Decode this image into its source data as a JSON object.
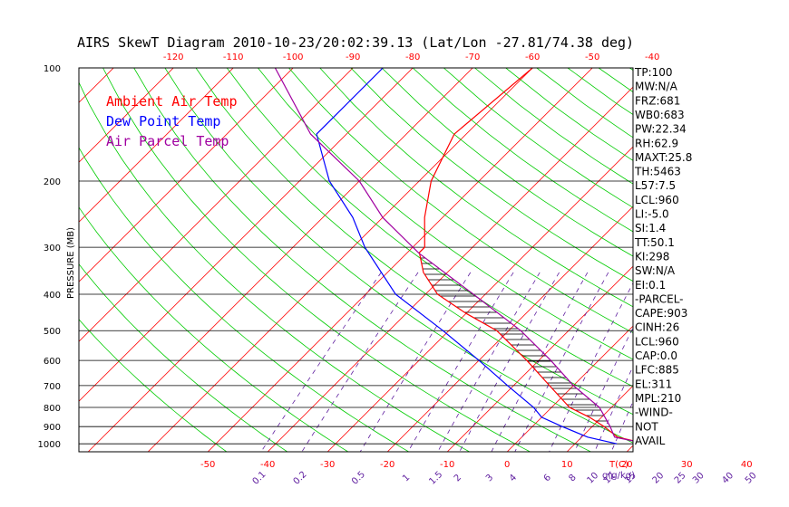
{
  "chart_data": {
    "type": "line",
    "title": "AIRS SkewT Diagram 2010-10-23/20:02:39.13 (Lat/Lon -27.81/74.38 deg)",
    "ylabel": "PRESSURE (MB)",
    "y_scale": "log",
    "ylim": [
      1050,
      100
    ],
    "pressure_ticks": [
      100,
      200,
      300,
      400,
      500,
      600,
      700,
      800,
      900,
      1000
    ],
    "top_temp_ticks": [
      -120,
      -110,
      -100,
      -90,
      -80,
      -70,
      -60,
      -50,
      -40
    ],
    "bottom_temp_ticks": [
      -50,
      -40,
      -30,
      -20,
      -10,
      0,
      10,
      20,
      30,
      40
    ],
    "bottom_temp_unit": "T(C)",
    "mixing_ratio_ticks": [
      "0.1",
      "0.2",
      "0.5",
      "1",
      "1.5",
      "2",
      "3",
      "4",
      "6",
      "8",
      "10",
      "12",
      "15",
      "20",
      "25",
      "30",
      "40",
      "50"
    ],
    "mixing_ratio_unit": "g(g/kg)",
    "legend": [
      {
        "label": "Ambient Air Temp",
        "color": "#ff0000"
      },
      {
        "label": "Dew Point Temp",
        "color": "#0000ff"
      },
      {
        "label": "Air Parcel Temp",
        "color": "#a000a0"
      }
    ],
    "series": [
      {
        "name": "Ambient Air Temp",
        "color": "#ff0000",
        "points": [
          [
            1000,
            22
          ],
          [
            960,
            16
          ],
          [
            900,
            12
          ],
          [
            850,
            8
          ],
          [
            800,
            3
          ],
          [
            700,
            -4
          ],
          [
            600,
            -12
          ],
          [
            500,
            -22
          ],
          [
            450,
            -30
          ],
          [
            400,
            -38
          ],
          [
            350,
            -44
          ],
          [
            310,
            -48
          ],
          [
            300,
            -48
          ],
          [
            250,
            -53
          ],
          [
            200,
            -58
          ],
          [
            150,
            -62
          ],
          [
            100,
            -60
          ]
        ]
      },
      {
        "name": "Dew Point Temp",
        "color": "#0000ff",
        "points": [
          [
            1000,
            17
          ],
          [
            960,
            11
          ],
          [
            900,
            5
          ],
          [
            850,
            0
          ],
          [
            800,
            -3
          ],
          [
            700,
            -11
          ],
          [
            600,
            -20
          ],
          [
            500,
            -31
          ],
          [
            400,
            -45
          ],
          [
            300,
            -58
          ],
          [
            250,
            -65
          ],
          [
            200,
            -75
          ],
          [
            150,
            -85
          ],
          [
            100,
            -85
          ]
        ]
      },
      {
        "name": "Air Parcel Temp",
        "color": "#a000a0",
        "points": [
          [
            1000,
            22
          ],
          [
            960,
            15.5
          ],
          [
            900,
            13
          ],
          [
            800,
            8
          ],
          [
            700,
            0
          ],
          [
            600,
            -8
          ],
          [
            500,
            -18
          ],
          [
            400,
            -32
          ],
          [
            311,
            -48
          ],
          [
            250,
            -60
          ],
          [
            200,
            -70
          ],
          [
            150,
            -86
          ],
          [
            100,
            -103
          ]
        ]
      }
    ],
    "grid": true
  },
  "indices": [
    "TP:100",
    "MW:N/A",
    "FRZ:681",
    "WB0:683",
    "PW:22.34",
    "RH:62.9",
    "MAXT:25.8",
    "TH:5463",
    "L57:7.5",
    "LCL:960",
    "LI:-5.0",
    "SI:1.4",
    "TT:50.1",
    "KI:298",
    "SW:N/A",
    "EI:0.1",
    "-PARCEL-",
    "CAPE:903",
    "CINH:26",
    "LCL:960",
    "CAP:0.0",
    "LFC:885",
    "EL:311",
    "MPL:210",
    "-WIND-",
    "NOT",
    "AVAIL"
  ],
  "colors": {
    "isotherm": "#ff0000",
    "dry_adiabat": "#00cc00",
    "mixing_ratio": "#6020a0",
    "frame": "#000000",
    "temp_axis": "#ff0000",
    "mixing_axis": "#6020a0"
  }
}
